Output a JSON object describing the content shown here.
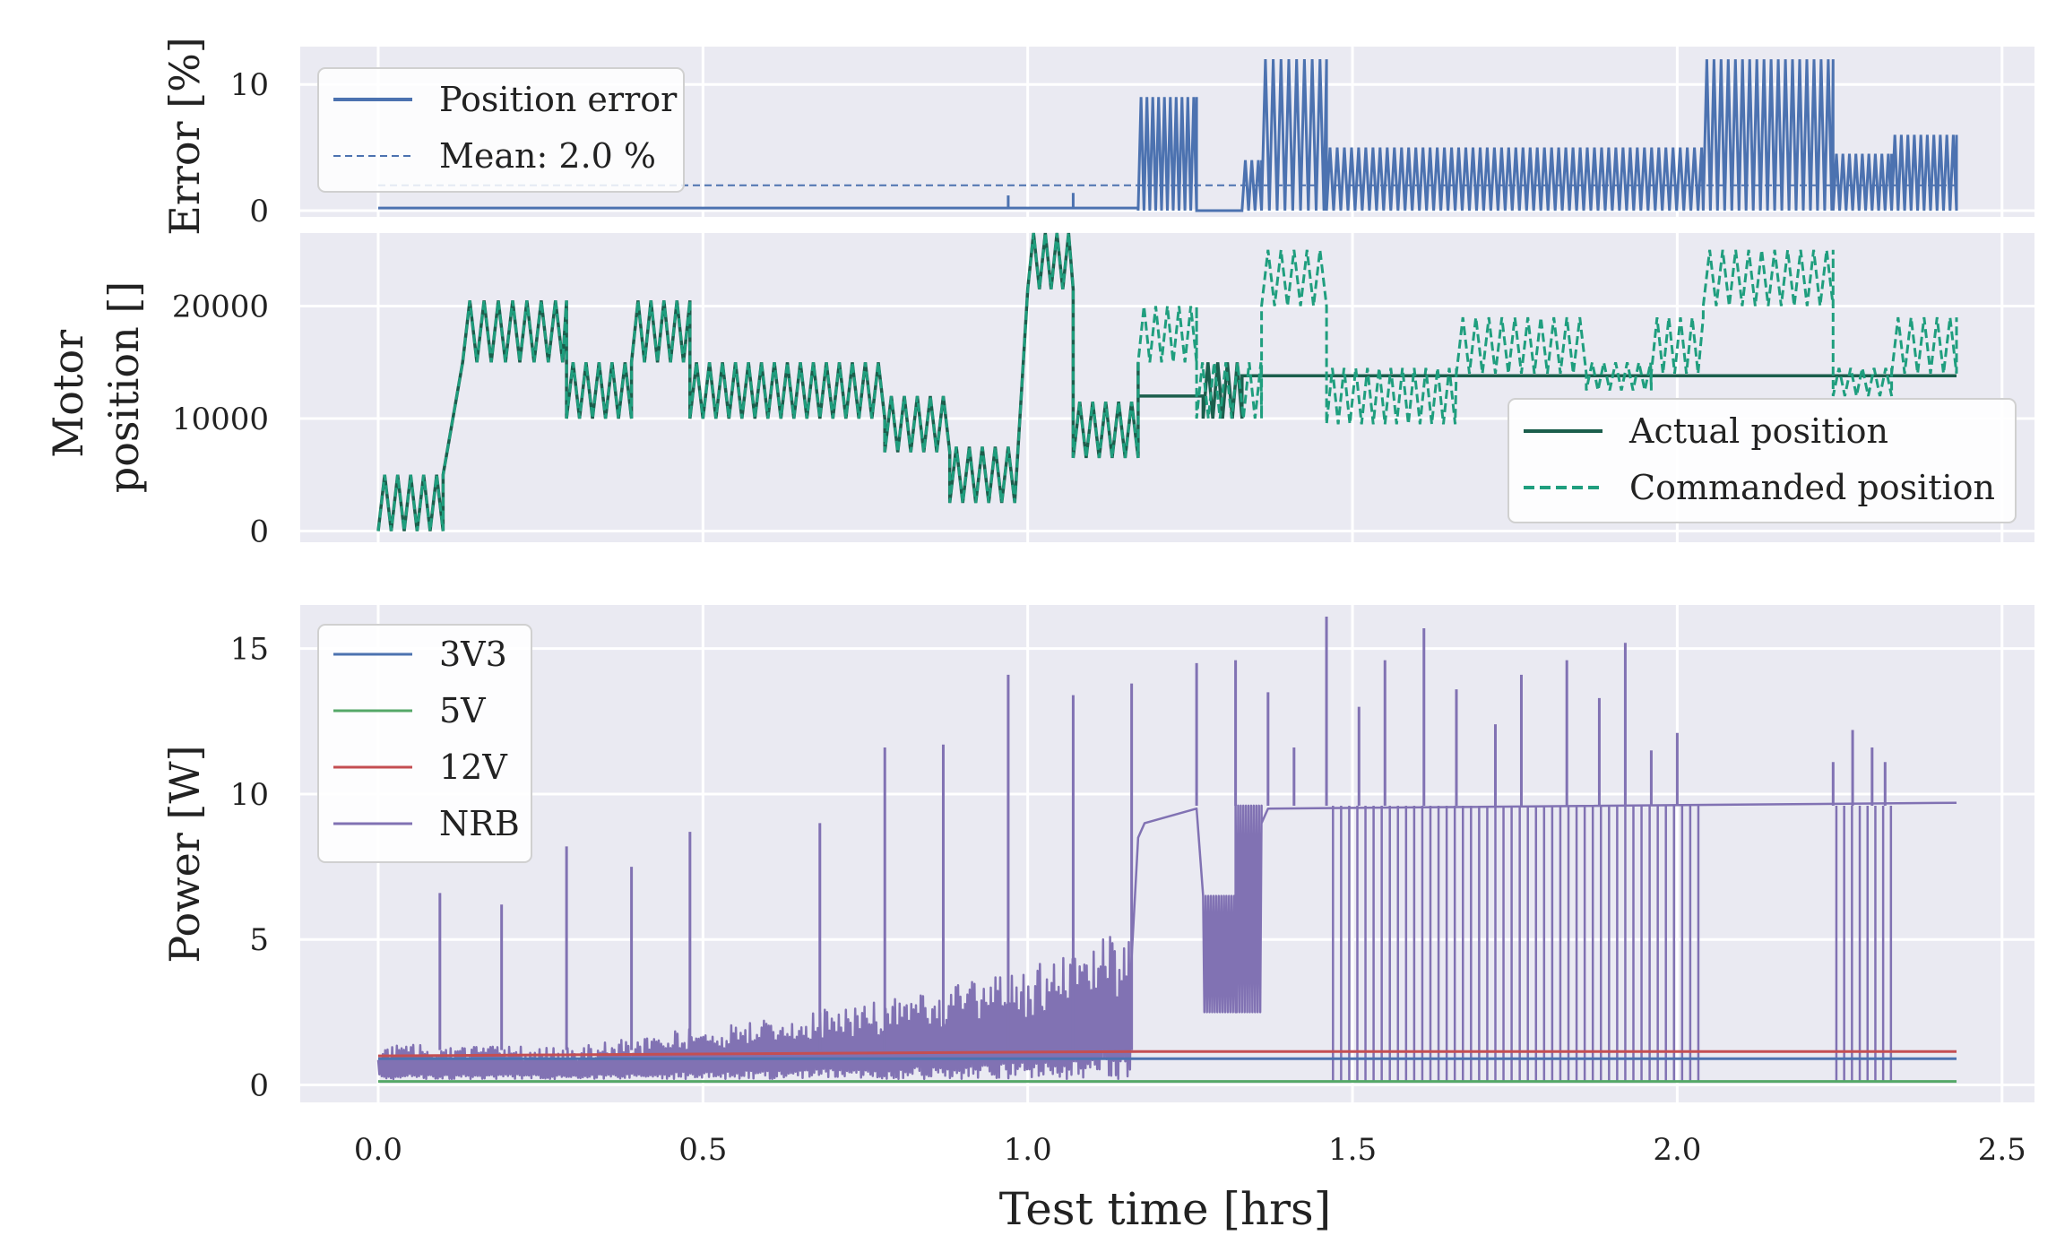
{
  "colors": {
    "background": "#eaeaf2",
    "grid": "#ffffff",
    "blue": "#4c72b0",
    "green": "#55a868",
    "red": "#c44e52",
    "purple": "#8172b3",
    "dark_teal": "#1b5e4c",
    "teal": "#1f9e7e"
  },
  "xaxis": {
    "label": "Test time [hrs]",
    "ticks": [
      0.0,
      0.5,
      1.0,
      1.5,
      2.0,
      2.5
    ],
    "tick_labels": [
      "0.0",
      "0.5",
      "1.0",
      "1.5",
      "2.0",
      "2.5"
    ],
    "lim": [
      -0.12,
      2.55
    ]
  },
  "chart_data": [
    {
      "type": "line",
      "ylabel": "Error [%]",
      "ylim": [
        -0.5,
        13
      ],
      "yticks": [
        0,
        10
      ],
      "ytick_labels": [
        "0",
        "10"
      ],
      "legend": {
        "placement": "top-left",
        "entries": [
          "Position error",
          "Mean: 2.0 %"
        ]
      },
      "series": [
        {
          "name": "Position error",
          "style": "solid",
          "color": "blue",
          "segments": [
            {
              "t0": 0.0,
              "t1": 1.17,
              "level": 0.2,
              "amp": 0
            },
            {
              "t0": 1.17,
              "t1": 1.26,
              "level": 0,
              "amp": 9,
              "period": 0.009
            },
            {
              "t0": 1.26,
              "t1": 1.33,
              "level": 0,
              "amp": 0
            },
            {
              "t0": 1.33,
              "t1": 1.36,
              "level": 0,
              "amp": 4,
              "period": 0.01
            },
            {
              "t0": 1.36,
              "t1": 1.46,
              "level": 0,
              "amp": 12,
              "period": 0.012
            },
            {
              "t0": 1.46,
              "t1": 2.04,
              "level": 0,
              "amp": 5,
              "period": 0.011
            },
            {
              "t0": 2.04,
              "t1": 2.24,
              "level": 0,
              "amp": 12,
              "period": 0.011
            },
            {
              "t0": 2.24,
              "t1": 2.33,
              "level": 0,
              "amp": 4.5,
              "period": 0.01
            },
            {
              "t0": 2.33,
              "t1": 2.43,
              "level": 0,
              "amp": 6,
              "period": 0.01
            }
          ]
        },
        {
          "name": "Mean: 2.0 %",
          "style": "dashed",
          "color": "blue",
          "x": [
            0.0,
            2.43
          ],
          "y": [
            2.0,
            2.0
          ]
        }
      ]
    },
    {
      "type": "line",
      "ylabel": "Motor position []",
      "ylabel_lines": [
        "Motor",
        "position []"
      ],
      "ylim": [
        -1000,
        26500
      ],
      "yticks": [
        0,
        10000,
        20000
      ],
      "ytick_labels": [
        "0",
        "10000",
        "20000"
      ],
      "legend": {
        "placement": "lower-right",
        "entries": [
          "Actual position",
          "Commanded position"
        ]
      },
      "series": [
        {
          "name": "Commanded position",
          "style": "dashed",
          "color": "teal",
          "segments": [
            {
              "t0": 0.0,
              "t1": 0.1,
              "base": 0,
              "amp": 5000,
              "period": 0.02
            },
            {
              "t0": 0.1,
              "t1": 0.13,
              "ramp_from": 5000,
              "ramp_to": 15000
            },
            {
              "t0": 0.13,
              "t1": 0.29,
              "base": 15000,
              "amp": 5500,
              "period": 0.022
            },
            {
              "t0": 0.29,
              "t1": 0.39,
              "base": 10000,
              "amp": 5000,
              "period": 0.02
            },
            {
              "t0": 0.39,
              "t1": 0.48,
              "base": 15000,
              "amp": 5500,
              "period": 0.02
            },
            {
              "t0": 0.48,
              "t1": 0.78,
              "base": 10000,
              "amp": 5000,
              "period": 0.02
            },
            {
              "t0": 0.78,
              "t1": 0.88,
              "base": 7000,
              "amp": 5000,
              "period": 0.02
            },
            {
              "t0": 0.88,
              "t1": 0.98,
              "base": 2500,
              "amp": 5000,
              "period": 0.02
            },
            {
              "t0": 0.98,
              "t1": 1.0,
              "ramp_from": 2500,
              "ramp_to": 21500
            },
            {
              "t0": 1.0,
              "t1": 1.07,
              "base": 21500,
              "amp": 5000,
              "period": 0.018
            },
            {
              "t0": 1.07,
              "t1": 1.17,
              "base": 6500,
              "amp": 5000,
              "period": 0.02
            },
            {
              "t0": 1.17,
              "t1": 1.26,
              "base": 15000,
              "amp": 5000,
              "period": 0.018
            },
            {
              "t0": 1.26,
              "t1": 1.36,
              "base": 10000,
              "amp": 5000,
              "period": 0.018
            },
            {
              "t0": 1.36,
              "t1": 1.46,
              "base": 20000,
              "amp": 5000,
              "period": 0.02
            },
            {
              "t0": 1.46,
              "t1": 1.66,
              "base": 9500,
              "amp": 5000,
              "period": 0.018
            },
            {
              "t0": 1.66,
              "t1": 1.86,
              "base": 14000,
              "amp": 5000,
              "period": 0.02
            },
            {
              "t0": 1.86,
              "t1": 1.96,
              "base": 12500,
              "amp": 2500,
              "period": 0.018
            },
            {
              "t0": 1.96,
              "t1": 2.04,
              "base": 14000,
              "amp": 5000,
              "period": 0.018
            },
            {
              "t0": 2.04,
              "t1": 2.24,
              "base": 20000,
              "amp": 5000,
              "period": 0.02
            },
            {
              "t0": 2.24,
              "t1": 2.33,
              "base": 12000,
              "amp": 2500,
              "period": 0.018
            },
            {
              "t0": 2.33,
              "t1": 2.43,
              "base": 14000,
              "amp": 5000,
              "period": 0.02
            }
          ]
        },
        {
          "name": "Actual position",
          "style": "solid",
          "color": "dark_teal",
          "follows_commanded_until": 1.17,
          "segments_after": [
            {
              "t0": 1.17,
              "t1": 1.27,
              "level": 12000
            },
            {
              "t0": 1.27,
              "t1": 1.33,
              "base": 10000,
              "amp": 5000,
              "period": 0.015
            },
            {
              "t0": 1.33,
              "t1": 2.43,
              "level": 13800
            }
          ]
        }
      ]
    },
    {
      "type": "line",
      "ylabel": "Power [W]",
      "ylim": [
        -0.6,
        16.5
      ],
      "yticks": [
        0,
        5,
        10,
        15
      ],
      "ytick_labels": [
        "0",
        "5",
        "10",
        "15"
      ],
      "legend": {
        "placement": "top-left",
        "entries": [
          "3V3",
          "5V",
          "12V",
          "NRB"
        ]
      },
      "series": [
        {
          "name": "3V3",
          "color": "blue",
          "x": [
            0.0,
            2.43
          ],
          "y": [
            0.9,
            0.9
          ]
        },
        {
          "name": "5V",
          "color": "green",
          "x": [
            0.0,
            2.43
          ],
          "y": [
            0.12,
            0.12
          ]
        },
        {
          "name": "12V",
          "color": "red",
          "x": [
            0.0,
            1.17,
            2.43
          ],
          "y": [
            1.0,
            1.15,
            1.15
          ]
        },
        {
          "name": "NRB",
          "color": "purple",
          "envelope": [
            {
              "t": 0.0,
              "low": 0.2,
              "high": 1.4
            },
            {
              "t": 0.3,
              "low": 0.2,
              "high": 1.3
            },
            {
              "t": 0.5,
              "low": 0.2,
              "high": 2.0
            },
            {
              "t": 0.8,
              "low": 0.2,
              "high": 3.0
            },
            {
              "t": 1.0,
              "low": 0.2,
              "high": 4.0
            },
            {
              "t": 1.16,
              "low": 0.2,
              "high": 5.5
            }
          ],
          "plateau": [
            {
              "t0": 1.17,
              "t1": 1.26,
              "level_from": 9.0,
              "level_to": 9.5
            },
            {
              "t0": 1.27,
              "t1": 1.32,
              "low": 2.5,
              "high": 6.5
            },
            {
              "t0": 1.32,
              "t1": 1.36,
              "low": 2.5,
              "high": 9.6
            },
            {
              "t0": 1.36,
              "t1": 2.43,
              "level_from": 9.5,
              "level_to": 9.7
            }
          ],
          "spikes": [
            {
              "t": 0.095,
              "v": 6.6
            },
            {
              "t": 0.19,
              "v": 6.2
            },
            {
              "t": 0.29,
              "v": 8.2
            },
            {
              "t": 0.39,
              "v": 7.5
            },
            {
              "t": 0.48,
              "v": 8.7
            },
            {
              "t": 0.68,
              "v": 9.0
            },
            {
              "t": 0.78,
              "v": 11.6
            },
            {
              "t": 0.87,
              "v": 11.7
            },
            {
              "t": 0.97,
              "v": 14.1
            },
            {
              "t": 1.07,
              "v": 13.4
            },
            {
              "t": 1.16,
              "v": 13.8
            },
            {
              "t": 1.26,
              "v": 14.5
            },
            {
              "t": 1.32,
              "v": 14.6
            },
            {
              "t": 1.37,
              "v": 13.5
            },
            {
              "t": 1.41,
              "v": 11.6
            },
            {
              "t": 1.46,
              "v": 16.1
            },
            {
              "t": 1.51,
              "v": 13.0
            },
            {
              "t": 1.55,
              "v": 14.6
            },
            {
              "t": 1.61,
              "v": 15.7
            },
            {
              "t": 1.66,
              "v": 13.6
            },
            {
              "t": 1.72,
              "v": 12.4
            },
            {
              "t": 1.76,
              "v": 14.1
            },
            {
              "t": 1.83,
              "v": 14.6
            },
            {
              "t": 1.88,
              "v": 13.3
            },
            {
              "t": 1.92,
              "v": 15.2
            },
            {
              "t": 1.96,
              "v": 11.5
            },
            {
              "t": 2.0,
              "v": 12.1
            },
            {
              "t": 2.24,
              "v": 11.1
            },
            {
              "t": 2.27,
              "v": 12.2
            },
            {
              "t": 2.3,
              "v": 11.6
            },
            {
              "t": 2.32,
              "v": 11.1
            }
          ]
        }
      ]
    }
  ]
}
